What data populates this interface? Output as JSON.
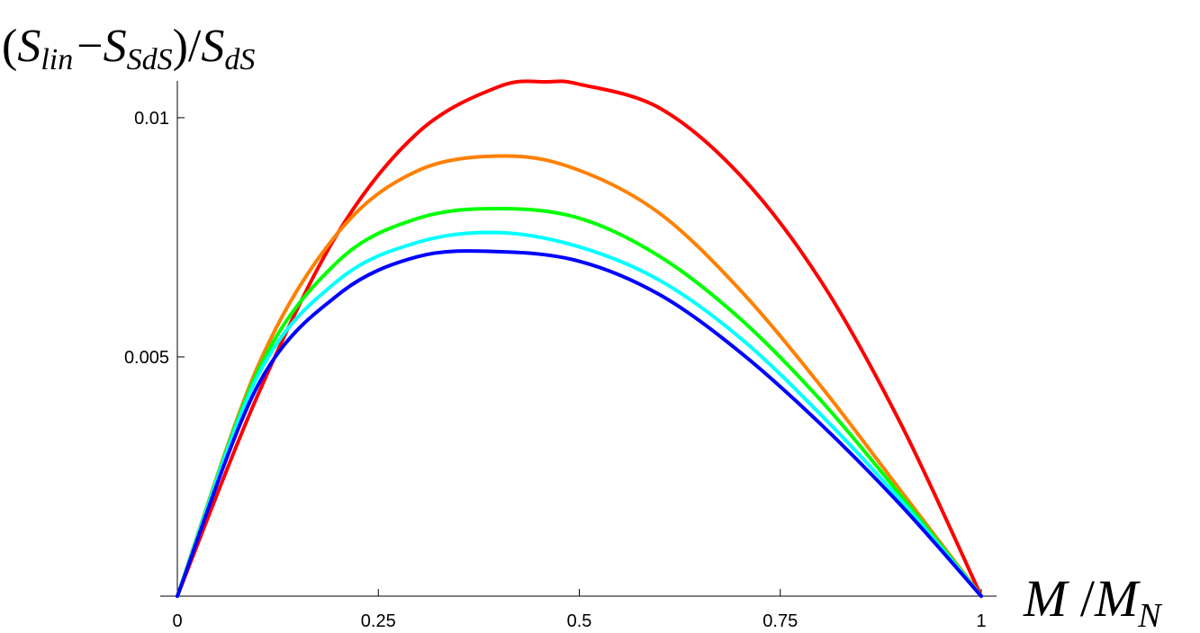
{
  "chart_data": {
    "type": "line",
    "title": "",
    "ylabel": {
      "open": "(",
      "s1": "S",
      "sub1": "lin",
      "minus": "−",
      "s2": "S",
      "sub2": "SdS",
      "close": ")/",
      "s3": "S",
      "sub3": "dS"
    },
    "xlabel": {
      "m1": "M",
      "slash": " /",
      "m2": "M",
      "sub": "N"
    },
    "xlim": [
      0,
      1
    ],
    "ylim": [
      0,
      0.01075
    ],
    "x_ticks": [
      {
        "value": 0,
        "label": "0"
      },
      {
        "value": 0.25,
        "label": "0.25"
      },
      {
        "value": 0.5,
        "label": "0.5"
      },
      {
        "value": 0.75,
        "label": "0.75"
      },
      {
        "value": 1,
        "label": "1"
      }
    ],
    "y_ticks": [
      {
        "value": 0.005,
        "label": "0.005"
      },
      {
        "value": 0.01,
        "label": "0.01"
      }
    ],
    "grid": false,
    "legend": "none",
    "series": [
      {
        "color": "#ff0000",
        "x": [
          0,
          0.1,
          0.2,
          0.3,
          0.4,
          0.46,
          0.5,
          0.6,
          0.7,
          0.8,
          0.9,
          1.0
        ],
        "y": [
          0,
          0.0042,
          0.0076,
          0.0097,
          0.01065,
          0.01075,
          0.0107,
          0.0102,
          0.0088,
          0.0066,
          0.0036,
          0
        ]
      },
      {
        "color": "#ff8000",
        "x": [
          0,
          0.1,
          0.2,
          0.3,
          0.41,
          0.5,
          0.6,
          0.7,
          0.8,
          0.9,
          1.0
        ],
        "y": [
          0,
          0.0048,
          0.0076,
          0.0089,
          0.0092,
          0.0089,
          0.008,
          0.0064,
          0.0044,
          0.0022,
          0
        ]
      },
      {
        "color": "#00ff00",
        "x": [
          0,
          0.1,
          0.2,
          0.3,
          0.4,
          0.5,
          0.6,
          0.7,
          0.8,
          0.9,
          1.0
        ],
        "y": [
          0,
          0.0047,
          0.007,
          0.0079,
          0.0081,
          0.0079,
          0.0071,
          0.0058,
          0.0041,
          0.0021,
          0
        ]
      },
      {
        "color": "#00ffff",
        "x": [
          0,
          0.1,
          0.2,
          0.3,
          0.4,
          0.5,
          0.6,
          0.7,
          0.8,
          0.9,
          1.0
        ],
        "y": [
          0,
          0.0046,
          0.0066,
          0.0074,
          0.0076,
          0.0073,
          0.0066,
          0.0054,
          0.0038,
          0.002,
          0
        ]
      },
      {
        "color": "#0000ff",
        "x": [
          0,
          0.1,
          0.2,
          0.3,
          0.4,
          0.5,
          0.6,
          0.7,
          0.8,
          0.9,
          1.0
        ],
        "y": [
          0,
          0.0044,
          0.0063,
          0.0071,
          0.0072,
          0.007,
          0.0063,
          0.0051,
          0.0036,
          0.0019,
          0
        ]
      }
    ]
  }
}
